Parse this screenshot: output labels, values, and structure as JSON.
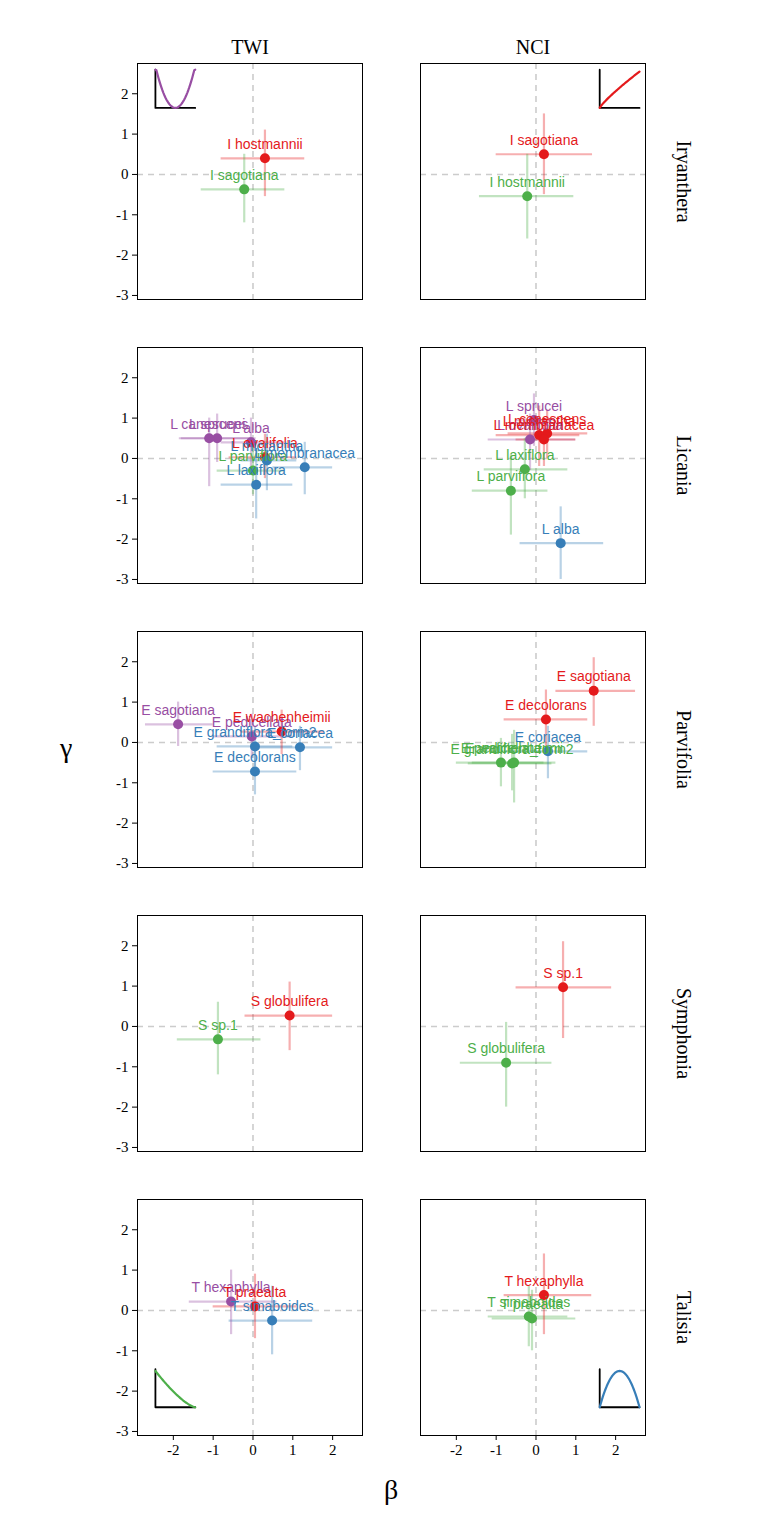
{
  "chart_data": {
    "type": "scatter",
    "x_label": "β",
    "y_label": "γ",
    "xlim": [
      -2.9,
      2.75
    ],
    "ylim": [
      -3.1,
      2.75
    ],
    "xticks": [
      -2,
      -1,
      0,
      1,
      2
    ],
    "yticks": [
      -3,
      -2,
      -1,
      0,
      1,
      2
    ],
    "grid": false,
    "facet_columns": [
      "TWI",
      "NCI"
    ],
    "facet_rows": [
      "Iryanthera",
      "Licania",
      "Parvifolia",
      "Symphonia",
      "Talisia"
    ],
    "panels": [
      {
        "column": "TWI",
        "row": "Iryanthera",
        "series": [
          {
            "name": "I hostmannii",
            "color": "#e41a1c",
            "x": 0.3,
            "y": 0.4,
            "x_interval": [
              -0.8,
              1.3
            ],
            "y_interval": [
              -0.55,
              1.1
            ]
          },
          {
            "name": "I sagotiana",
            "color": "#4daf4a",
            "x": -0.22,
            "y": -0.37,
            "x_interval": [
              -1.3,
              0.8
            ],
            "y_interval": [
              -1.2,
              0.5
            ]
          }
        ]
      },
      {
        "column": "NCI",
        "row": "Iryanthera",
        "series": [
          {
            "name": "I sagotiana",
            "color": "#e41a1c",
            "x": 0.2,
            "y": 0.5,
            "x_interval": [
              -1.0,
              1.42
            ],
            "y_interval": [
              -0.5,
              1.5
            ]
          },
          {
            "name": "I hostmannii",
            "color": "#4daf4a",
            "x": -0.22,
            "y": -0.54,
            "x_interval": [
              -1.42,
              0.95
            ],
            "y_interval": [
              -1.6,
              0.5
            ]
          }
        ]
      },
      {
        "column": "TWI",
        "row": "Licania",
        "series": [
          {
            "name": "L sprucei",
            "color": "#984ea3",
            "x": -0.9,
            "y": 0.5,
            "x_interval": [
              -1.8,
              0.0
            ],
            "y_interval": [
              -0.1,
              1.1
            ]
          },
          {
            "name": "L alba",
            "color": "#984ea3",
            "x": -0.05,
            "y": 0.4,
            "x_interval": [
              -0.8,
              0.8
            ],
            "y_interval": [
              -0.2,
              1.0
            ]
          },
          {
            "name": "L canescens",
            "color": "#984ea3",
            "x": -1.1,
            "y": 0.5,
            "x_interval": [
              -1.85,
              0.08
            ],
            "y_interval": [
              -0.7,
              1.0
            ]
          },
          {
            "name": "L ovalifolia",
            "color": "#e41a1c",
            "x": 0.3,
            "y": 0.03,
            "x_interval": [
              -0.6,
              1.1
            ],
            "y_interval": [
              -0.5,
              0.6
            ]
          },
          {
            "name": "L parviflora",
            "color": "#4daf4a",
            "x": 0.0,
            "y": -0.3,
            "x_interval": [
              -0.9,
              0.8
            ],
            "y_interval": [
              -0.9,
              0.3
            ]
          },
          {
            "name": "L micrantha",
            "color": "#377eb8",
            "x": 0.35,
            "y": -0.05,
            "x_interval": [
              -0.3,
              1.1
            ],
            "y_interval": [
              -0.8,
              0.6
            ]
          },
          {
            "name": "L membranacea",
            "color": "#377eb8",
            "x": 1.3,
            "y": -0.22,
            "x_interval": [
              0.5,
              2.0
            ],
            "y_interval": [
              -0.9,
              0.4
            ]
          },
          {
            "name": "L laxiflora",
            "color": "#377eb8",
            "x": 0.08,
            "y": -0.65,
            "x_interval": [
              -0.8,
              1.0
            ],
            "y_interval": [
              -1.5,
              0.2
            ]
          }
        ]
      },
      {
        "column": "NCI",
        "row": "Licania",
        "series": [
          {
            "name": "L sprucei",
            "color": "#984ea3",
            "x": -0.05,
            "y": 0.95,
            "x_interval": [
              -0.5,
              0.4
            ],
            "y_interval": [
              0.3,
              1.6
            ]
          },
          {
            "name": "L canescens",
            "color": "#e41a1c",
            "x": 0.28,
            "y": 0.62,
            "x_interval": [
              -0.7,
              1.3
            ],
            "y_interval": [
              0.0,
              1.2
            ]
          },
          {
            "name": "L micrantha",
            "color": "#e41a1c",
            "x": 0.08,
            "y": 0.58,
            "x_interval": [
              -1.0,
              1.1
            ],
            "y_interval": [
              -0.2,
              1.3
            ]
          },
          {
            "name": "L ovalifolia",
            "color": "#984ea3",
            "x": -0.15,
            "y": 0.47,
            "x_interval": [
              -1.2,
              1.0
            ],
            "y_interval": [
              -0.3,
              1.1
            ]
          },
          {
            "name": "L membranacea",
            "color": "#e41a1c",
            "x": 0.2,
            "y": 0.47,
            "x_interval": [
              -0.5,
              1.0
            ],
            "y_interval": [
              -0.2,
              1.0
            ]
          },
          {
            "name": "L parviflora",
            "color": "#4daf4a",
            "x": -0.63,
            "y": -0.8,
            "x_interval": [
              -1.6,
              0.3
            ],
            "y_interval": [
              -1.9,
              0.1
            ]
          },
          {
            "name": "L laxiflora",
            "color": "#4daf4a",
            "x": -0.28,
            "y": -0.27,
            "x_interval": [
              -1.3,
              0.8
            ],
            "y_interval": [
              -1.0,
              0.5
            ]
          },
          {
            "name": "L alba",
            "color": "#377eb8",
            "x": 0.62,
            "y": -2.1,
            "x_interval": [
              -0.4,
              1.7
            ],
            "y_interval": [
              -3.0,
              -1.2
            ]
          }
        ]
      },
      {
        "column": "TWI",
        "row": "Parvifolia",
        "series": [
          {
            "name": "E pedicellata",
            "color": "#984ea3",
            "x": -0.03,
            "y": 0.15,
            "x_interval": [
              -1.0,
              1.0
            ],
            "y_interval": [
              -0.4,
              0.7
            ]
          },
          {
            "name": "E wachenheimii",
            "color": "#e41a1c",
            "x": 0.72,
            "y": 0.27,
            "x_interval": [
              -0.3,
              1.8
            ],
            "y_interval": [
              -0.3,
              0.8
            ]
          },
          {
            "name": "E sagotiana",
            "color": "#984ea3",
            "x": -1.88,
            "y": 0.45,
            "x_interval": [
              -2.7,
              -1.0
            ],
            "y_interval": [
              -0.1,
              1.0
            ]
          },
          {
            "name": "E grandiflora_form2",
            "color": "#377eb8",
            "x": 0.05,
            "y": -0.1,
            "x_interval": [
              -0.9,
              1.0
            ],
            "y_interval": [
              -0.6,
              0.4
            ]
          },
          {
            "name": "E coriacea",
            "color": "#377eb8",
            "x": 1.18,
            "y": -0.12,
            "x_interval": [
              0.1,
              2.0
            ],
            "y_interval": [
              -0.7,
              0.4
            ]
          },
          {
            "name": "E decolorans",
            "color": "#377eb8",
            "x": 0.05,
            "y": -0.72,
            "x_interval": [
              -1.0,
              1.1
            ],
            "y_interval": [
              -1.3,
              -0.1
            ]
          }
        ]
      },
      {
        "column": "NCI",
        "row": "Parvifolia",
        "series": [
          {
            "name": "E sagotiana",
            "color": "#e41a1c",
            "x": 1.45,
            "y": 1.28,
            "x_interval": [
              0.5,
              2.5
            ],
            "y_interval": [
              0.4,
              2.1
            ]
          },
          {
            "name": "E decolorans",
            "color": "#e41a1c",
            "x": 0.25,
            "y": 0.57,
            "x_interval": [
              -0.8,
              1.3
            ],
            "y_interval": [
              -0.2,
              1.3
            ]
          },
          {
            "name": "E pedicellata",
            "color": "#4daf4a",
            "x": -0.88,
            "y": -0.5,
            "x_interval": [
              -2.0,
              0.2
            ],
            "y_interval": [
              -1.1,
              0.1
            ]
          },
          {
            "name": "E coriacea",
            "color": "#377eb8",
            "x": 0.3,
            "y": -0.22,
            "x_interval": [
              -0.8,
              1.3
            ],
            "y_interval": [
              -0.9,
              0.4
            ]
          },
          {
            "name": "E grandiflora_form2",
            "color": "#4daf4a",
            "x": -0.6,
            "y": -0.52,
            "x_interval": [
              -1.7,
              0.4
            ],
            "y_interval": [
              -1.2,
              0.2
            ]
          },
          {
            "name": "E wachenheimii",
            "color": "#4daf4a",
            "x": -0.55,
            "y": -0.5,
            "x_interval": [
              -1.6,
              0.5
            ],
            "y_interval": [
              -1.5,
              0.3
            ]
          }
        ]
      },
      {
        "column": "TWI",
        "row": "Symphonia",
        "series": [
          {
            "name": "S globulifera",
            "color": "#e41a1c",
            "x": 0.92,
            "y": 0.27,
            "x_interval": [
              -0.2,
              2.0
            ],
            "y_interval": [
              -0.6,
              1.1
            ]
          },
          {
            "name": "S sp.1",
            "color": "#4daf4a",
            "x": -0.88,
            "y": -0.32,
            "x_interval": [
              -1.9,
              0.2
            ],
            "y_interval": [
              -1.2,
              0.6
            ]
          }
        ]
      },
      {
        "column": "NCI",
        "row": "Symphonia",
        "series": [
          {
            "name": "S sp.1",
            "color": "#e41a1c",
            "x": 0.68,
            "y": 0.97,
            "x_interval": [
              -0.5,
              1.9
            ],
            "y_interval": [
              -0.3,
              2.1
            ]
          },
          {
            "name": "S globulifera",
            "color": "#4daf4a",
            "x": -0.75,
            "y": -0.9,
            "x_interval": [
              -1.9,
              0.4
            ],
            "y_interval": [
              -2.0,
              0.1
            ]
          }
        ]
      },
      {
        "column": "TWI",
        "row": "Talisia",
        "series": [
          {
            "name": "T hexaphylla",
            "color": "#984ea3",
            "x": -0.55,
            "y": 0.22,
            "x_interval": [
              -1.6,
              0.6
            ],
            "y_interval": [
              -0.6,
              1.0
            ]
          },
          {
            "name": "T praealta",
            "color": "#e41a1c",
            "x": 0.05,
            "y": 0.1,
            "x_interval": [
              -1.0,
              1.1
            ],
            "y_interval": [
              -0.7,
              0.9
            ]
          },
          {
            "name": "T simaboides",
            "color": "#377eb8",
            "x": 0.48,
            "y": -0.25,
            "x_interval": [
              -0.6,
              1.5
            ],
            "y_interval": [
              -1.1,
              0.6
            ]
          }
        ]
      },
      {
        "column": "NCI",
        "row": "Talisia",
        "series": [
          {
            "name": "T hexaphylla",
            "color": "#e41a1c",
            "x": 0.2,
            "y": 0.38,
            "x_interval": [
              -0.8,
              1.4
            ],
            "y_interval": [
              -0.6,
              1.4
            ]
          },
          {
            "name": "T simaboides",
            "color": "#4daf4a",
            "x": -0.18,
            "y": -0.15,
            "x_interval": [
              -1.2,
              0.8
            ],
            "y_interval": [
              -0.9,
              0.6
            ]
          },
          {
            "name": "T praealta",
            "color": "#4daf4a",
            "x": -0.1,
            "y": -0.2,
            "x_interval": [
              -1.1,
              1.0
            ],
            "y_interval": [
              -1.0,
              0.5
            ]
          }
        ]
      }
    ]
  }
}
